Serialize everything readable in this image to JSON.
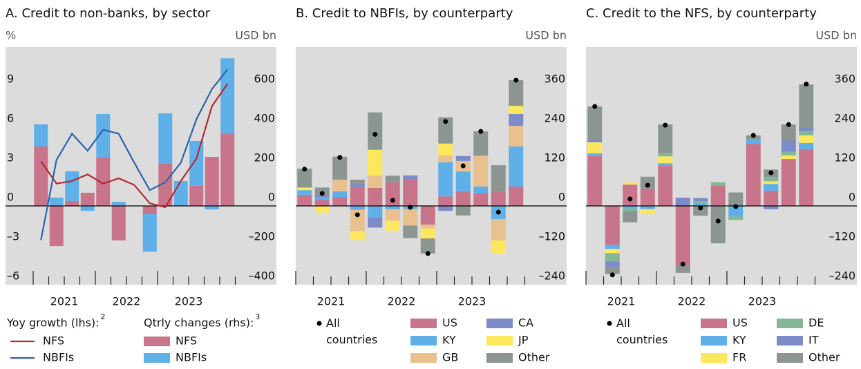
{
  "chart_data": [
    {
      "type": "combo",
      "title": "A. Credit to non-banks, by sector",
      "y_label": "%",
      "y2_label": "USD bn",
      "categories": [
        "2021",
        null,
        null,
        null,
        "2022",
        null,
        null,
        null,
        "2023",
        null,
        null,
        null,
        null
      ],
      "ylim": [
        -6,
        12
      ],
      "yticks": [
        {
          "value": -6,
          "label": "–6"
        },
        {
          "value": -3,
          "label": "–3"
        },
        0,
        3,
        6,
        9
      ],
      "y2lim": [
        -400,
        800
      ],
      "y2ticks": [
        {
          "value": -400,
          "label": "–400"
        },
        {
          "value": -200,
          "label": "–200"
        },
        0,
        200,
        400,
        600
      ],
      "legend_titles": [
        {
          "text": "Yoy growth (lhs):",
          "note": "2"
        },
        {
          "text": "Qtrly changes (rhs):",
          "note": "3"
        }
      ],
      "series": [
        {
          "name": "NFS",
          "type": "line",
          "color": "#b5282e",
          "values": [
            3.4,
            1.7,
            1.9,
            2.4,
            1.7,
            2.1,
            1.6,
            0.2,
            -0.1,
            1.9,
            3.6,
            7.6,
            9.3
          ]
        },
        {
          "name": "NBFIs",
          "type": "line",
          "color": "#2a63ad",
          "values": [
            -2.6,
            3.5,
            5.5,
            4.2,
            5.8,
            5.5,
            3.3,
            1.2,
            1.8,
            3.3,
            6.6,
            8.9,
            10.4
          ]
        },
        {
          "name": "NFS",
          "type": "bar",
          "axis": "y2",
          "color": "#c8748a",
          "values": [
            302,
            -204,
            25,
            67,
            246,
            -175,
            0,
            -42,
            214,
            0,
            102,
            249,
            368
          ]
        },
        {
          "name": "NBFIs",
          "type": "bar",
          "axis": "y2",
          "color": "#5fb0e8",
          "values": [
            112,
            42,
            151,
            -25,
            221,
            21,
            0,
            -190,
            256,
            126,
            228,
            -18,
            382
          ]
        }
      ]
    },
    {
      "type": "stacked_bar",
      "title": "B. Credit to NBFIs, by counterparty",
      "y_label": "USD bn",
      "categories": [
        "2021",
        null,
        null,
        null,
        "2022",
        null,
        null,
        null,
        "2023",
        null,
        null,
        null,
        null
      ],
      "ylim": [
        -240,
        480
      ],
      "yticks": [
        {
          "value": -240,
          "label": "–240"
        },
        {
          "value": -120,
          "label": "–120"
        },
        0,
        120,
        240,
        360
      ],
      "total": {
        "name": "All countries",
        "color": "#000000",
        "values": [
          112,
          38,
          148,
          -27,
          218,
          17,
          -4,
          -145,
          257,
          122,
          227,
          -19,
          383
        ]
      },
      "series": [
        {
          "name": "US",
          "color": "#c8748a",
          "values": [
            34,
            18,
            27,
            58,
            55,
            72,
            82,
            -57,
            29,
            44,
            38,
            44,
            59
          ]
        },
        {
          "name": "KY",
          "color": "#5fb0e8",
          "values": [
            14,
            8,
            17,
            -12,
            -36,
            -10,
            -10,
            0,
            104,
            61,
            21,
            -40,
            122
          ]
        },
        {
          "name": "GB",
          "color": "#e8c18e",
          "values": [
            0,
            0,
            36,
            -65,
            38,
            -35,
            -50,
            -12,
            21,
            32,
            94,
            -65,
            63
          ]
        },
        {
          "name": "CA",
          "color": "#7d8bc8",
          "values": [
            0,
            8,
            0,
            10,
            -30,
            0,
            11,
            0,
            -15,
            15,
            0,
            0,
            36
          ]
        },
        {
          "name": "JP",
          "color": "#fde75c",
          "values": [
            8,
            -20,
            0,
            -27,
            78,
            -30,
            0,
            -30,
            36,
            0,
            0,
            -40,
            25
          ]
        },
        {
          "name": "Other",
          "color": "#8c9690",
          "values": [
            57,
            22,
            70,
            12,
            114,
            20,
            -38,
            -46,
            80,
            -29,
            74,
            80,
            78
          ]
        }
      ]
    },
    {
      "type": "stacked_bar",
      "title": "C. Credit to the NFS, by counterparty",
      "y_label": "USD bn",
      "categories": [
        "2021",
        null,
        null,
        null,
        "2022",
        null,
        null,
        null,
        "2023",
        null,
        null,
        null,
        null
      ],
      "ylim": [
        -240,
        480
      ],
      "yticks": [
        {
          "value": -240,
          "label": "–240"
        },
        {
          "value": -120,
          "label": "–120"
        },
        0,
        120,
        240,
        360
      ],
      "total": {
        "name": "All countries",
        "color": "#000000",
        "values": [
          303,
          -210,
          21,
          63,
          246,
          -177,
          -6,
          -46,
          -2,
          215,
          101,
          248,
          371
        ]
      },
      "series": [
        {
          "name": "US",
          "color": "#c8748a",
          "values": [
            152,
            -118,
            65,
            53,
            122,
            -179,
            0,
            61,
            0,
            189,
            46,
            143,
            173
          ]
        },
        {
          "name": "KY",
          "color": "#5fb0e8",
          "values": [
            8,
            -13,
            -8,
            -10,
            8,
            0,
            8,
            0,
            -32,
            15,
            21,
            0,
            19
          ]
        },
        {
          "name": "FR",
          "color": "#fde75c",
          "values": [
            34,
            -13,
            6,
            -15,
            21,
            0,
            0,
            0,
            0,
            0,
            8,
            11,
            23
          ]
        },
        {
          "name": "DE",
          "color": "#83b796",
          "values": [
            0,
            -25,
            -8,
            0,
            11,
            0,
            6,
            11,
            -11,
            0,
            13,
            11,
            13
          ]
        },
        {
          "name": "IT",
          "color": "#7d8bc8",
          "values": [
            10,
            -17,
            0,
            0,
            0,
            25,
            10,
            0,
            0,
            0,
            -10,
            34,
            11
          ]
        },
        {
          "name": "Other",
          "color": "#8c9690",
          "values": [
            99,
            -21,
            -34,
            36,
            86,
            -25,
            -30,
            -114,
            41,
            11,
            23,
            49,
            131
          ]
        }
      ]
    }
  ]
}
